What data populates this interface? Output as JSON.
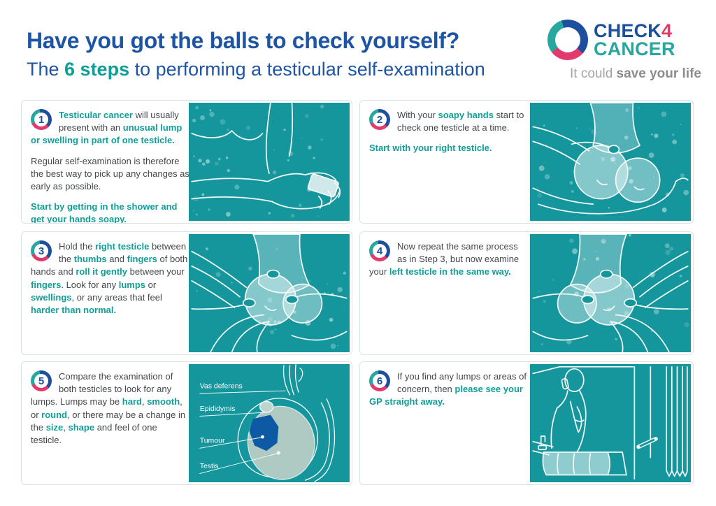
{
  "page": {
    "title": "Have you got the balls to check yourself?",
    "subtitle": [
      {
        "t": "The "
      },
      {
        "t": "6 steps",
        "s": "teal"
      },
      {
        "t": " to performing a testicular self-examination"
      }
    ]
  },
  "logo": {
    "line1": [
      {
        "t": "CHECK"
      },
      {
        "t": "4",
        "s": "pink"
      }
    ],
    "line2": "CANCER",
    "tagline": [
      {
        "t": "It could "
      },
      {
        "t": "save your life",
        "s": "bold"
      }
    ]
  },
  "colors": {
    "accent_teal": "#15969c",
    "teal_text": "#0f9f98",
    "headline_blue": "#1d55a4",
    "logo_pink": "#e23a6c",
    "logo_teal": "#27a79e",
    "tumour_blue": "#0d56a5"
  },
  "steps": [
    {
      "number": "1",
      "illustration": "soapy-hands",
      "paragraphs": {
        "p1": [
          {
            "t": "Testicular cancer",
            "s": "teal"
          },
          {
            "t": " will usually present with an "
          },
          {
            "t": "unusual lump or swelling in part of one testicle.",
            "s": "teal"
          }
        ],
        "p2": [
          {
            "t": "Regular self-examination is therefore the best way to pick up any changes as early as possible."
          }
        ],
        "p3": [
          {
            "t": "Start by getting in the shower and get your hands soapy.",
            "s": "teal"
          }
        ]
      }
    },
    {
      "number": "2",
      "illustration": "hands-cradling-testicle",
      "paragraphs": {
        "p1": [
          {
            "t": "With your "
          },
          {
            "t": "soapy hands",
            "s": "teal"
          },
          {
            "t": " start to check one testicle at a time."
          }
        ],
        "p2": [
          {
            "t": "Start with your right testicle.",
            "s": "teal"
          }
        ]
      }
    },
    {
      "number": "3",
      "illustration": "rolling-right-testicle",
      "paragraphs": {
        "p1": [
          {
            "t": "Hold the "
          },
          {
            "t": "right testicle",
            "s": "teal"
          },
          {
            "t": " between the "
          },
          {
            "t": "thumbs",
            "s": "teal"
          },
          {
            "t": " and "
          },
          {
            "t": "fingers",
            "s": "teal"
          },
          {
            "t": " of both hands and "
          },
          {
            "t": "roll it gently",
            "s": "teal"
          },
          {
            "t": " between your "
          },
          {
            "t": "fingers",
            "s": "teal"
          },
          {
            "t": ". Look for any "
          },
          {
            "t": "lumps",
            "s": "teal"
          },
          {
            "t": " or "
          },
          {
            "t": "swellings",
            "s": "teal"
          },
          {
            "t": ", or any areas that feel "
          },
          {
            "t": "harder than normal.",
            "s": "teal"
          }
        ]
      }
    },
    {
      "number": "4",
      "illustration": "rolling-left-testicle",
      "paragraphs": {
        "p1": [
          {
            "t": "Now repeat the same process as in Step 3, but now examine your "
          },
          {
            "t": "left testicle in the same way.",
            "s": "teal"
          }
        ]
      }
    },
    {
      "number": "5",
      "illustration": "testicle-anatomy-diagram",
      "paragraphs": {
        "p1": [
          {
            "t": "Compare the examination of both testicles to look for any lumps. Lumps may be "
          },
          {
            "t": "hard",
            "s": "teal"
          },
          {
            "t": ", "
          },
          {
            "t": "smooth",
            "s": "teal"
          },
          {
            "t": ", or "
          },
          {
            "t": "round",
            "s": "teal"
          },
          {
            "t": ", or there may be a change in the "
          },
          {
            "t": "size",
            "s": "teal"
          },
          {
            "t": ", "
          },
          {
            "t": "shape",
            "s": "teal"
          },
          {
            "t": " and feel of one testicle."
          }
        ]
      }
    },
    {
      "number": "6",
      "illustration": "man-calling-gp",
      "paragraphs": {
        "p1": [
          {
            "t": "If you find any lumps or areas of concern, then "
          },
          {
            "t": "please see your GP straight away.",
            "s": "teal"
          }
        ]
      }
    }
  ],
  "diagram": {
    "labels": [
      "Vas deferens",
      "Epididymis",
      "Tumour",
      "Testis"
    ]
  }
}
